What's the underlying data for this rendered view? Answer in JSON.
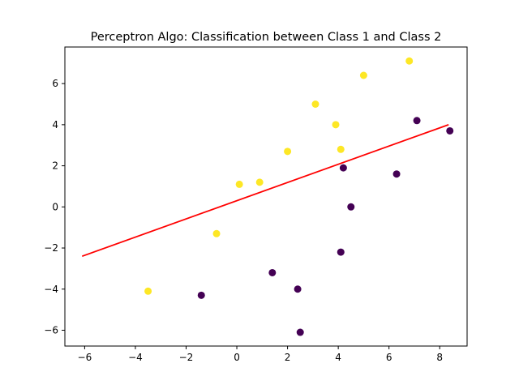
{
  "chart_data": {
    "type": "scatter",
    "title": "Perceptron Algo: Classification between Class 1 and Class 2",
    "xlabel": "",
    "ylabel": "",
    "xlim": [
      -6.78,
      9.08
    ],
    "ylim": [
      -6.77,
      7.78
    ],
    "xticks": [
      -6,
      -4,
      -2,
      0,
      2,
      4,
      6,
      8
    ],
    "yticks": [
      -6,
      -4,
      -2,
      0,
      2,
      4,
      6
    ],
    "grid": false,
    "colors": {
      "class_yellow": "#fde725",
      "class_purple": "#440154",
      "line": "#ff0000"
    },
    "series": [
      {
        "x": [
          -3.5,
          -0.8,
          0.1,
          0.9,
          2.0,
          3.1,
          3.9,
          4.1,
          5.0,
          6.8
        ],
        "y": [
          -4.1,
          -1.3,
          1.1,
          1.2,
          2.7,
          5.0,
          4.0,
          2.8,
          6.4,
          7.1
        ]
      },
      {
        "x": [
          -1.4,
          1.4,
          2.4,
          2.5,
          4.1,
          4.2,
          4.5,
          6.3,
          7.1,
          8.4
        ],
        "y": [
          -4.3,
          -3.2,
          -4.0,
          -6.1,
          -2.2,
          1.9,
          0.0,
          1.6,
          4.2,
          3.7
        ]
      }
    ],
    "decision_line": {
      "x": [
        -6.1,
        8.35
      ],
      "y": [
        -2.4,
        4.0
      ]
    }
  }
}
